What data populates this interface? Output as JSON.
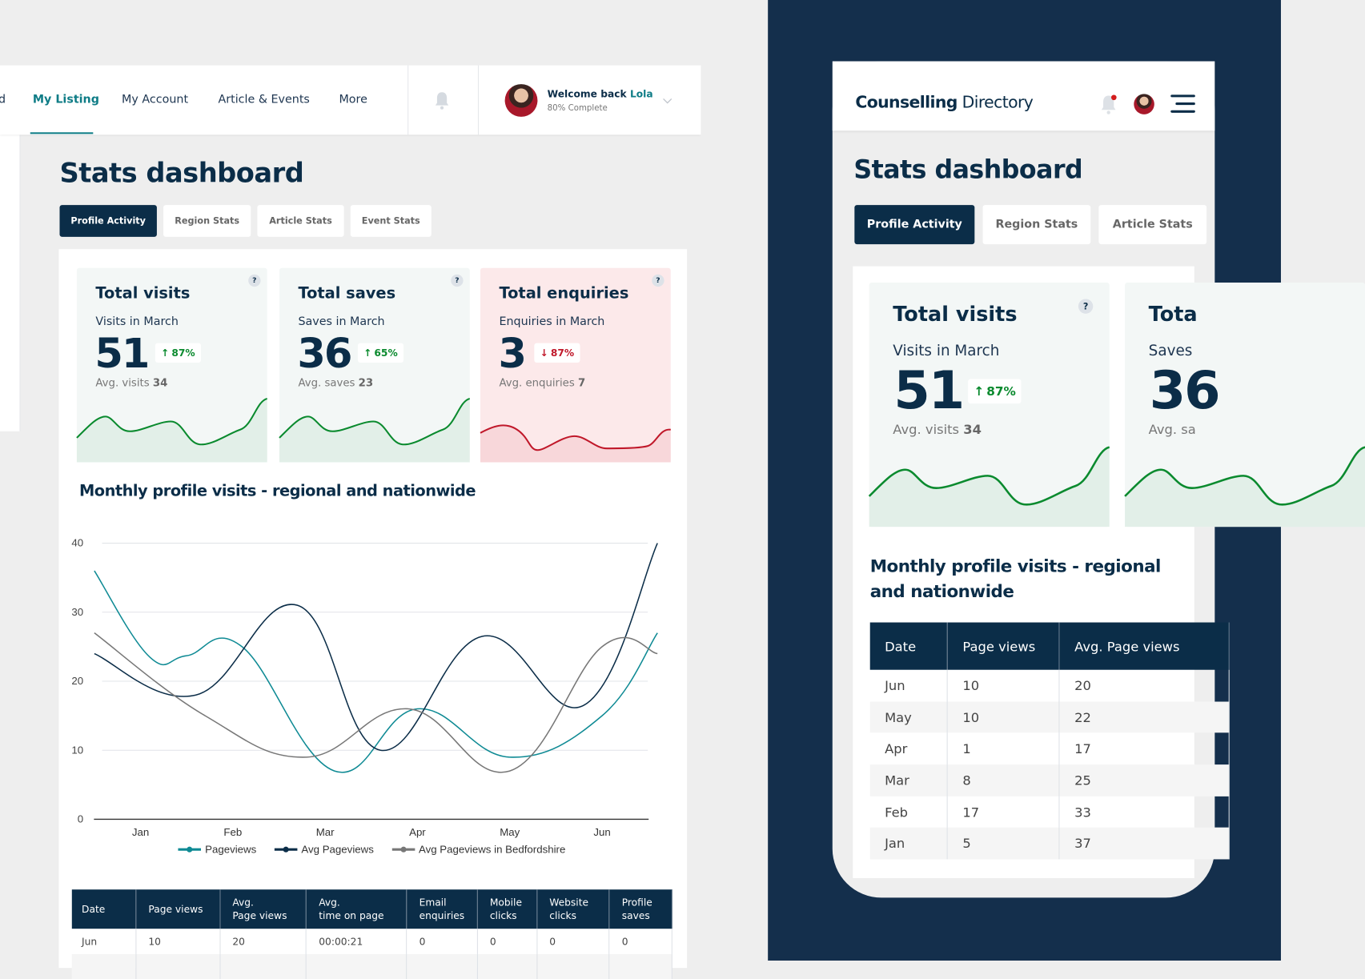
{
  "nav": {
    "items": [
      {
        "label": "d"
      },
      {
        "label": "My Listing",
        "active": true
      },
      {
        "label": "My Account"
      },
      {
        "label": "Article & Events"
      },
      {
        "label": "More"
      }
    ],
    "bell_icon": "bell-icon",
    "welcome_prefix": "Welcome back",
    "user_name": "Lola",
    "progress_text": "80% Complete",
    "profile_complete_percent": 80
  },
  "page": {
    "title": "Stats dashboard"
  },
  "tabs": [
    {
      "label": "Profile Activity",
      "active": true
    },
    {
      "label": "Region Stats"
    },
    {
      "label": "Article Stats"
    },
    {
      "label": "Event Stats"
    }
  ],
  "kpis": [
    {
      "title": "Total visits",
      "subtitle": "Visits in March",
      "value": "51",
      "change": "87%",
      "direction": "up",
      "avg_label": "Avg. visits",
      "avg_value": "34",
      "help": "?"
    },
    {
      "title": "Total saves",
      "subtitle": "Saves in March",
      "value": "36",
      "change": "65%",
      "direction": "up",
      "avg_label": "Avg. saves",
      "avg_value": "23",
      "help": "?"
    },
    {
      "title": "Total enquiries",
      "subtitle": "Enquiries in March",
      "value": "3",
      "change": "87%",
      "direction": "down",
      "avg_label": "Avg. enquiries",
      "avg_value": "7",
      "help": "?"
    }
  ],
  "chart_section_title": "Monthly profile visits - regional and nationwide",
  "chart_data": {
    "type": "line",
    "title": "Monthly profile visits - regional and nationwide",
    "categories": [
      "Jan",
      "Feb",
      "Mar",
      "Apr",
      "May",
      "Jun"
    ],
    "ylim": [
      0,
      40
    ],
    "yticks": [
      0,
      10,
      20,
      30,
      40
    ],
    "grid": true,
    "legend": "bottom",
    "series": [
      {
        "name": "Pageviews",
        "color": "#0e8a94",
        "x": [
          0.5,
          1.1,
          1.5,
          2.1,
          3.1,
          4.0,
          5.0,
          6.0,
          6.6
        ],
        "y": [
          36,
          23.5,
          23.7,
          25,
          7,
          16,
          9,
          15,
          27
        ]
      },
      {
        "name": "Avg Pageviews",
        "color": "#0b2d48",
        "x": [
          0.5,
          1.6,
          2.7,
          3.6,
          4.7,
          5.8,
          6.6
        ],
        "y": [
          24,
          18,
          31,
          10,
          26.5,
          16.5,
          40
        ]
      },
      {
        "name": "Avg Pageviews in Bedfordshire",
        "color": "#777777",
        "x": [
          0.5,
          1.7,
          2.8,
          3.9,
          5.0,
          6.0,
          6.6
        ],
        "y": [
          27,
          15,
          9,
          16,
          7,
          25,
          24
        ]
      }
    ]
  },
  "desktop_table": {
    "headers": [
      [
        "Date"
      ],
      [
        "Page views"
      ],
      [
        "Avg.",
        "Page views"
      ],
      [
        "Avg.",
        "time on page"
      ],
      [
        "Email",
        "enquiries"
      ],
      [
        "Mobile",
        "clicks"
      ],
      [
        "Website",
        "clicks"
      ],
      [
        "Profile",
        "saves"
      ]
    ],
    "rows": [
      [
        "Jun",
        "10",
        "20",
        "00:00:21",
        "0",
        "0",
        "0",
        "0"
      ]
    ]
  },
  "mobile": {
    "logo_bold": "Counselling",
    "logo_light": "Directory",
    "tabs": [
      {
        "label": "Profile Activity",
        "active": true
      },
      {
        "label": "Region Stats"
      },
      {
        "label": "Article Stats"
      }
    ],
    "second_kpi_title": "Tota",
    "second_kpi_sub": "Saves",
    "second_kpi_value": "36",
    "second_kpi_avg": "Avg. sa",
    "chart_title_line1": "Monthly profile visits - regional",
    "chart_title_line2": "and nationwide",
    "table": {
      "headers": [
        "Date",
        "Page views",
        "Avg. Page views"
      ],
      "rows": [
        [
          "Jun",
          "10",
          "20"
        ],
        [
          "May",
          "10",
          "22"
        ],
        [
          "Apr",
          "1",
          "17"
        ],
        [
          "Mar",
          "8",
          "25"
        ],
        [
          "Feb",
          "17",
          "33"
        ],
        [
          "Jan",
          "5",
          "37"
        ]
      ]
    }
  },
  "colors": {
    "navy": "#0b2d48",
    "teal": "#0e7c86",
    "up": "#0a8a2e",
    "down": "#c0182a",
    "dark_bg": "#142f4c"
  }
}
